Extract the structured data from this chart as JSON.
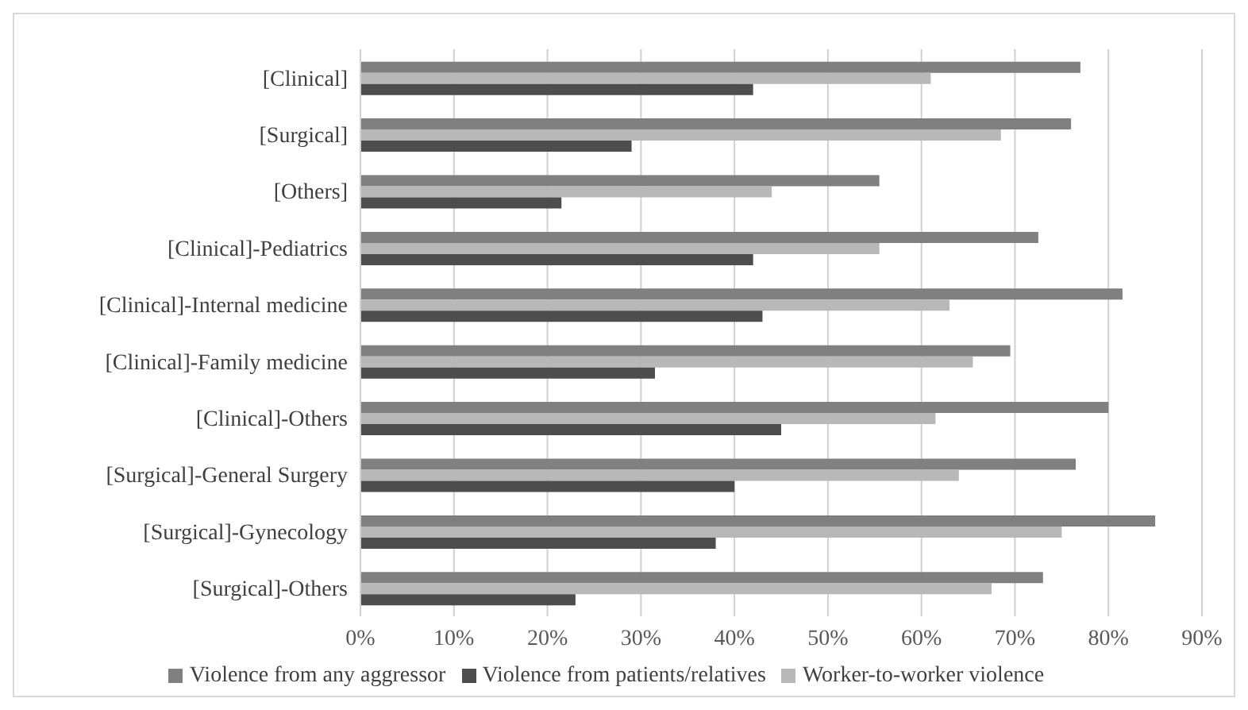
{
  "chart_data": {
    "type": "bar",
    "orientation": "horizontal",
    "categories": [
      "[Clinical]",
      "[Surgical]",
      "[Others]",
      "[Clinical]-Pediatrics",
      "[Clinical]-Internal medicine",
      "[Clinical]-Family medicine",
      "[Clinical]-Others",
      "[Surgical]-General Surgery",
      "[Surgical]-Gynecology",
      "[Surgical]-Others"
    ],
    "series": [
      {
        "name": "Violence from any aggressor",
        "color": "#808080",
        "values": [
          77,
          76,
          55.5,
          72.5,
          81.5,
          69.5,
          80,
          76.5,
          85,
          73
        ]
      },
      {
        "name": "Worker-to-worker violence",
        "color": "#b8b8b8",
        "values": [
          61,
          68.5,
          44,
          55.5,
          63,
          65.5,
          61.5,
          64,
          75,
          67.5
        ]
      },
      {
        "name": "Violence from patients/relatives",
        "color": "#4d4d4d",
        "values": [
          42,
          29,
          21.5,
          42,
          43,
          31.5,
          45,
          40,
          38,
          23
        ]
      }
    ],
    "xlim": [
      0,
      90
    ],
    "xticks": [
      {
        "value": 0,
        "label": "0%"
      },
      {
        "value": 10,
        "label": "10%"
      },
      {
        "value": 20,
        "label": "20%"
      },
      {
        "value": 30,
        "label": "30%"
      },
      {
        "value": 40,
        "label": "40%"
      },
      {
        "value": 50,
        "label": "50%"
      },
      {
        "value": 60,
        "label": "60%"
      },
      {
        "value": 70,
        "label": "70%"
      },
      {
        "value": 80,
        "label": "80%"
      },
      {
        "value": 90,
        "label": "90%"
      }
    ],
    "grid": "x",
    "legend": "bottom"
  }
}
